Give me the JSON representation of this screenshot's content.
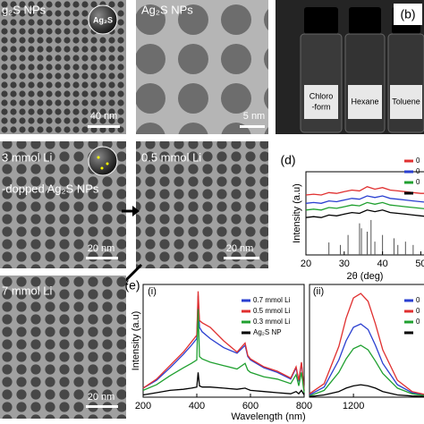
{
  "images": [
    {
      "label": "g₂S NPs",
      "badge": "Ag₂S",
      "scale_bar": "40 nm"
    },
    {
      "label": "Ag₂S NPs",
      "scale_bar": "5 nm"
    },
    {
      "label": "3 mmol Li",
      "sublabel": "-dopped Ag₂S NPs",
      "scale_bar": "20 nm"
    },
    {
      "label": "0.5 mmol Li",
      "scale_bar": "20 nm"
    },
    {
      "label": "7 mmol Li",
      "scale_bar": "20 nm"
    }
  ],
  "photo": {
    "label": "(b)",
    "vials": [
      [
        "Chloro",
        "-form"
      ],
      [
        "Hexane"
      ],
      [
        "Toluene"
      ]
    ]
  },
  "chart_data": [
    {
      "type": "line",
      "label": "(d)",
      "ylabel": "Intensity (a.u)",
      "xlabel": "2θ (deg)",
      "xlim": [
        20,
        52
      ],
      "xticks": [
        20,
        30,
        40,
        50
      ],
      "ylim": [
        0,
        10
      ],
      "x": [
        20,
        22,
        24,
        26,
        28,
        30,
        32,
        34,
        36,
        38,
        40,
        42,
        44,
        46,
        48,
        50,
        52
      ],
      "series": [
        {
          "name": "0",
          "color": "#e03030",
          "values": [
            7.2,
            7.3,
            7.2,
            7.5,
            7.4,
            7.6,
            7.8,
            7.7,
            8.2,
            7.9,
            8.1,
            7.8,
            7.7,
            7.6,
            7.5,
            7.4,
            7.4
          ]
        },
        {
          "name": "0",
          "color": "#2a3fd0",
          "values": [
            6.2,
            6.3,
            6.2,
            6.5,
            6.4,
            6.6,
            6.8,
            6.7,
            7.1,
            6.9,
            7.1,
            6.8,
            6.7,
            6.6,
            6.5,
            6.4,
            6.3
          ]
        },
        {
          "name": "0",
          "color": "#20a030",
          "values": [
            5.4,
            5.5,
            5.4,
            5.7,
            5.6,
            5.8,
            6.0,
            5.9,
            6.3,
            6.1,
            6.3,
            6.0,
            5.9,
            5.8,
            5.7,
            5.6,
            5.5
          ]
        },
        {
          "color": "#000000",
          "values": [
            4.5,
            4.6,
            4.5,
            4.8,
            4.7,
            4.9,
            5.1,
            5.0,
            5.4,
            5.2,
            5.4,
            5.1,
            5.0,
            4.9,
            4.8,
            4.7,
            4.6
          ]
        }
      ],
      "reference": {
        "color": "#555555",
        "x": [
          26,
          29,
          31,
          34,
          34.5,
          36,
          37,
          38,
          40,
          43,
          44,
          46,
          48
        ],
        "values": [
          1.5,
          1.2,
          2.4,
          3.8,
          3.2,
          2.8,
          4.2,
          1.6,
          2.4,
          2.0,
          1.2,
          1.6,
          1.2
        ]
      }
    },
    {
      "type": "line",
      "label": "(e)",
      "panel": "(i)",
      "ylabel": "Intensity (a.u)",
      "xlabel": "Wavelength (nm)",
      "xlim": [
        200,
        800
      ],
      "xticks": [
        200,
        400,
        600,
        800
      ],
      "ylim": [
        0,
        10
      ],
      "x": [
        200,
        250,
        300,
        350,
        380,
        400,
        405,
        410,
        420,
        450,
        500,
        550,
        580,
        590,
        600,
        650,
        700,
        750,
        770,
        780,
        790,
        800
      ],
      "series": [
        {
          "name": "0.7 mmol Li",
          "color": "#2a3fd0",
          "values": [
            0.8,
            1.5,
            2.6,
            3.8,
            4.6,
            5.2,
            9.0,
            6.2,
            5.8,
            5.2,
            4.4,
            3.9,
            4.6,
            3.6,
            3.3,
            2.6,
            2.2,
            1.6,
            2.6,
            1.4,
            3.0,
            0.6
          ]
        },
        {
          "name": "0.5 mmol Li",
          "color": "#e03030",
          "values": [
            0.8,
            1.6,
            2.8,
            4.0,
            4.9,
            5.5,
            9.4,
            6.8,
            6.6,
            6.2,
            5.0,
            4.0,
            4.8,
            3.7,
            3.4,
            2.7,
            2.3,
            1.7,
            2.7,
            1.5,
            3.1,
            0.6
          ]
        },
        {
          "name": "0.3 mmol Li",
          "color": "#20a030",
          "values": [
            0.6,
            1.1,
            1.9,
            2.6,
            3.0,
            3.3,
            7.8,
            3.6,
            3.4,
            3.1,
            2.8,
            2.5,
            3.0,
            2.4,
            2.2,
            1.8,
            1.6,
            1.2,
            2.0,
            1.0,
            2.2,
            0.4
          ]
        },
        {
          "name": "Ag₂S NP",
          "color": "#000000",
          "values": [
            0.2,
            0.4,
            0.6,
            0.7,
            0.8,
            0.9,
            2.2,
            1.0,
            0.9,
            0.9,
            0.8,
            0.7,
            0.8,
            0.7,
            0.6,
            0.5,
            0.4,
            0.3,
            0.5,
            0.3,
            0.6,
            0.2
          ]
        }
      ]
    },
    {
      "type": "line",
      "panel": "(ii)",
      "xlim": [
        1050,
        1450
      ],
      "xticks": [
        1200
      ],
      "ylim": [
        0,
        10
      ],
      "x": [
        1050,
        1100,
        1150,
        1175,
        1200,
        1225,
        1250,
        1275,
        1300,
        1350,
        1400,
        1450
      ],
      "series": [
        {
          "name": "0",
          "color": "#2a3fd0",
          "values": [
            0.2,
            0.9,
            3.3,
            5.0,
            6.2,
            6.5,
            6.0,
            4.6,
            3.0,
            1.1,
            0.4,
            0.2
          ]
        },
        {
          "name": "0",
          "color": "#e03030",
          "values": [
            0.3,
            1.2,
            4.5,
            7.0,
            8.8,
            9.2,
            8.5,
            6.5,
            4.2,
            1.5,
            0.5,
            0.2
          ]
        },
        {
          "name": "0",
          "color": "#20a030",
          "values": [
            0.1,
            0.6,
            2.2,
            3.4,
            4.3,
            4.6,
            4.2,
            3.2,
            2.1,
            0.8,
            0.3,
            0.1
          ]
        },
        {
          "color": "#000000",
          "values": [
            0.05,
            0.2,
            0.5,
            0.8,
            1.0,
            1.1,
            1.0,
            0.8,
            0.5,
            0.2,
            0.1,
            0.05
          ]
        }
      ]
    }
  ]
}
